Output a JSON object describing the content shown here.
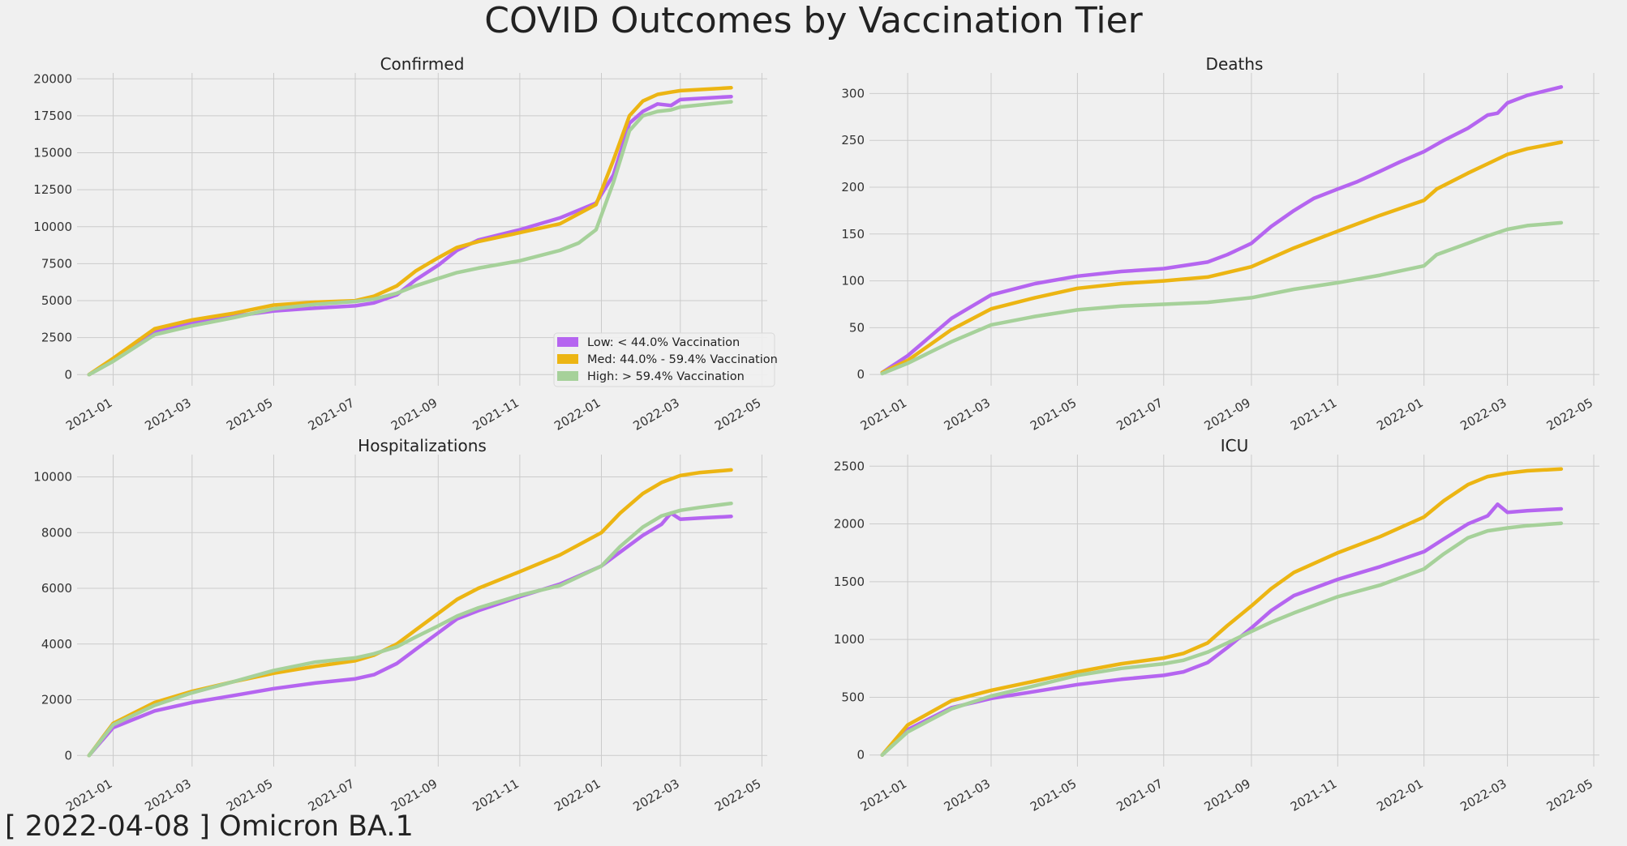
{
  "title": "COVID Outcomes by Vaccination Tier",
  "footer": "[ 2022-04-08 ] Omicron BA.1",
  "colors": {
    "low": "#b565f0",
    "med": "#ecb513",
    "high": "#a6d19a",
    "grid": "#cbcbcb",
    "background": "#f0f0f0"
  },
  "legend": {
    "placement": "lower-right of Confirmed panel",
    "entries": [
      {
        "key": "low",
        "label": "Low: < 44.0% Vaccination"
      },
      {
        "key": "med",
        "label": "Med: 44.0% - 59.4% Vaccination"
      },
      {
        "key": "high",
        "label": "High: > 59.4%  Vaccination"
      }
    ]
  },
  "chart_data": [
    {
      "type": "line",
      "title": "Confirmed",
      "x_ticks": [
        "2021-01",
        "2021-03",
        "2021-05",
        "2021-07",
        "2021-09",
        "2021-11",
        "2022-01",
        "2022-03",
        "2022-05"
      ],
      "xlim": [
        "2020-12-05",
        "2022-05-05"
      ],
      "ylim": [
        -750,
        20400
      ],
      "y_ticks": [
        0,
        2500,
        5000,
        7500,
        10000,
        12500,
        15000,
        17500,
        20000
      ],
      "grid": true,
      "series": [
        {
          "key": "low",
          "name": "Low: < 44.0% Vaccination",
          "x": [
            "2020-12-14",
            "2021-01-01",
            "2021-02-01",
            "2021-03-01",
            "2021-04-01",
            "2021-05-01",
            "2021-06-01",
            "2021-07-01",
            "2021-07-15",
            "2021-08-01",
            "2021-08-15",
            "2021-09-01",
            "2021-09-15",
            "2021-10-01",
            "2021-11-01",
            "2021-12-01",
            "2021-12-28",
            "2022-01-10",
            "2022-01-22",
            "2022-02-01",
            "2022-02-12",
            "2022-02-22",
            "2022-03-01",
            "2022-04-08"
          ],
          "y": [
            0,
            1000,
            2900,
            3500,
            3950,
            4300,
            4500,
            4650,
            4850,
            5400,
            6400,
            7400,
            8400,
            9100,
            9800,
            10600,
            11600,
            13500,
            17000,
            17800,
            18300,
            18200,
            18600,
            18800
          ]
        },
        {
          "key": "med",
          "name": "Med: 44.0% - 59.4% Vaccination",
          "x": [
            "2020-12-14",
            "2021-01-01",
            "2021-02-01",
            "2021-03-01",
            "2021-04-01",
            "2021-05-01",
            "2021-06-01",
            "2021-07-01",
            "2021-07-15",
            "2021-08-01",
            "2021-08-15",
            "2021-09-01",
            "2021-09-15",
            "2021-10-01",
            "2021-11-01",
            "2021-12-01",
            "2021-12-28",
            "2022-01-10",
            "2022-01-22",
            "2022-02-01",
            "2022-02-12",
            "2022-02-22",
            "2022-03-01",
            "2022-04-08"
          ],
          "y": [
            0,
            1100,
            3100,
            3700,
            4150,
            4700,
            4900,
            5000,
            5300,
            6000,
            7000,
            7900,
            8600,
            9000,
            9600,
            10200,
            11500,
            14500,
            17500,
            18500,
            18950,
            19100,
            19200,
            19400
          ]
        },
        {
          "key": "high",
          "name": "High: > 59.4%  Vaccination",
          "x": [
            "2020-12-14",
            "2021-01-01",
            "2021-02-01",
            "2021-03-01",
            "2021-04-01",
            "2021-05-01",
            "2021-06-01",
            "2021-07-01",
            "2021-07-15",
            "2021-08-01",
            "2021-08-15",
            "2021-09-01",
            "2021-09-15",
            "2021-10-01",
            "2021-11-01",
            "2021-12-01",
            "2021-12-15",
            "2021-12-28",
            "2022-01-10",
            "2022-01-22",
            "2022-02-01",
            "2022-02-12",
            "2022-02-22",
            "2022-03-01",
            "2022-04-08"
          ],
          "y": [
            0,
            900,
            2700,
            3300,
            3850,
            4450,
            4750,
            4950,
            5100,
            5500,
            6000,
            6500,
            6900,
            7200,
            7700,
            8400,
            8900,
            9800,
            13000,
            16500,
            17500,
            17800,
            17900,
            18100,
            18450
          ]
        }
      ]
    },
    {
      "type": "line",
      "title": "Deaths",
      "x_ticks": [
        "2021-01",
        "2021-03",
        "2021-05",
        "2021-07",
        "2021-09",
        "2021-11",
        "2022-01",
        "2022-03",
        "2022-05"
      ],
      "xlim": [
        "2020-12-05",
        "2022-05-05"
      ],
      "ylim": [
        -12,
        322
      ],
      "y_ticks": [
        0,
        50,
        100,
        150,
        200,
        250,
        300
      ],
      "grid": true,
      "series": [
        {
          "key": "low",
          "name": "Low: < 44.0% Vaccination",
          "x": [
            "2020-12-14",
            "2021-01-01",
            "2021-02-01",
            "2021-03-01",
            "2021-04-01",
            "2021-05-01",
            "2021-06-01",
            "2021-07-01",
            "2021-08-01",
            "2021-08-15",
            "2021-09-01",
            "2021-09-15",
            "2021-10-01",
            "2021-10-15",
            "2021-11-01",
            "2021-11-15",
            "2021-12-01",
            "2021-12-15",
            "2022-01-01",
            "2022-01-15",
            "2022-02-01",
            "2022-02-15",
            "2022-02-22",
            "2022-03-01",
            "2022-03-15",
            "2022-04-08"
          ],
          "y": [
            2,
            20,
            60,
            85,
            97,
            105,
            110,
            113,
            120,
            128,
            140,
            158,
            175,
            188,
            198,
            206,
            217,
            227,
            238,
            250,
            263,
            277,
            279,
            290,
            298,
            307
          ]
        },
        {
          "key": "med",
          "name": "Med: 44.0% - 59.4% Vaccination",
          "x": [
            "2020-12-14",
            "2021-01-01",
            "2021-02-01",
            "2021-03-01",
            "2021-04-01",
            "2021-05-01",
            "2021-06-01",
            "2021-07-01",
            "2021-08-01",
            "2021-09-01",
            "2021-10-01",
            "2021-11-01",
            "2021-12-01",
            "2022-01-01",
            "2022-01-10",
            "2022-02-01",
            "2022-02-15",
            "2022-03-01",
            "2022-03-15",
            "2022-04-08"
          ],
          "y": [
            2,
            15,
            48,
            70,
            82,
            92,
            97,
            100,
            104,
            115,
            135,
            153,
            170,
            186,
            198,
            215,
            225,
            235,
            241,
            248
          ]
        },
        {
          "key": "high",
          "name": "High: > 59.4%  Vaccination",
          "x": [
            "2020-12-14",
            "2021-01-01",
            "2021-02-01",
            "2021-03-01",
            "2021-04-01",
            "2021-05-01",
            "2021-06-01",
            "2021-07-01",
            "2021-08-01",
            "2021-09-01",
            "2021-10-01",
            "2021-11-01",
            "2021-12-01",
            "2022-01-01",
            "2022-01-10",
            "2022-02-01",
            "2022-02-15",
            "2022-03-01",
            "2022-03-15",
            "2022-04-08"
          ],
          "y": [
            1,
            12,
            35,
            53,
            62,
            69,
            73,
            75,
            77,
            82,
            91,
            98,
            106,
            116,
            128,
            140,
            148,
            155,
            159,
            162
          ]
        }
      ]
    },
    {
      "type": "line",
      "title": "Hospitalizations",
      "x_ticks": [
        "2021-01",
        "2021-03",
        "2021-05",
        "2021-07",
        "2021-09",
        "2021-11",
        "2022-01",
        "2022-03",
        "2022-05"
      ],
      "xlim": [
        "2020-12-05",
        "2022-05-05"
      ],
      "ylim": [
        -400,
        10800
      ],
      "y_ticks": [
        0,
        2000,
        4000,
        6000,
        8000,
        10000
      ],
      "grid": true,
      "series": [
        {
          "key": "low",
          "name": "Low: < 44.0% Vaccination",
          "x": [
            "2020-12-14",
            "2021-01-01",
            "2021-02-01",
            "2021-03-01",
            "2021-04-01",
            "2021-05-01",
            "2021-06-01",
            "2021-07-01",
            "2021-07-15",
            "2021-08-01",
            "2021-08-15",
            "2021-09-01",
            "2021-09-15",
            "2021-10-01",
            "2021-11-01",
            "2021-12-01",
            "2022-01-01",
            "2022-01-15",
            "2022-02-01",
            "2022-02-15",
            "2022-02-22",
            "2022-03-01",
            "2022-03-15",
            "2022-04-08"
          ],
          "y": [
            0,
            1000,
            1600,
            1900,
            2150,
            2400,
            2600,
            2750,
            2900,
            3300,
            3800,
            4400,
            4900,
            5200,
            5700,
            6150,
            6800,
            7300,
            7900,
            8300,
            8700,
            8480,
            8520,
            8580
          ]
        },
        {
          "key": "med",
          "name": "Med: 44.0% - 59.4% Vaccination",
          "x": [
            "2020-12-14",
            "2021-01-01",
            "2021-02-01",
            "2021-03-01",
            "2021-04-01",
            "2021-05-01",
            "2021-06-01",
            "2021-07-01",
            "2021-07-15",
            "2021-08-01",
            "2021-08-15",
            "2021-09-01",
            "2021-09-15",
            "2021-10-01",
            "2021-11-01",
            "2021-12-01",
            "2022-01-01",
            "2022-01-15",
            "2022-02-01",
            "2022-02-15",
            "2022-03-01",
            "2022-03-15",
            "2022-04-08"
          ],
          "y": [
            0,
            1150,
            1900,
            2300,
            2650,
            2950,
            3200,
            3400,
            3600,
            4000,
            4500,
            5100,
            5600,
            6000,
            6600,
            7200,
            8000,
            8700,
            9400,
            9800,
            10050,
            10150,
            10250
          ]
        },
        {
          "key": "high",
          "name": "High: > 59.4%  Vaccination",
          "x": [
            "2020-12-14",
            "2021-01-01",
            "2021-02-01",
            "2021-03-01",
            "2021-04-01",
            "2021-05-01",
            "2021-06-01",
            "2021-07-01",
            "2021-07-15",
            "2021-08-01",
            "2021-08-15",
            "2021-09-01",
            "2021-09-15",
            "2021-10-01",
            "2021-11-01",
            "2021-12-01",
            "2022-01-01",
            "2022-01-15",
            "2022-02-01",
            "2022-02-15",
            "2022-03-01",
            "2022-03-15",
            "2022-04-08"
          ],
          "y": [
            0,
            1100,
            1800,
            2250,
            2650,
            3050,
            3350,
            3500,
            3650,
            3900,
            4250,
            4650,
            5000,
            5300,
            5750,
            6100,
            6800,
            7500,
            8200,
            8600,
            8800,
            8900,
            9050
          ]
        }
      ]
    },
    {
      "type": "line",
      "title": "ICU",
      "x_ticks": [
        "2021-01",
        "2021-03",
        "2021-05",
        "2021-07",
        "2021-09",
        "2021-11",
        "2022-01",
        "2022-03",
        "2022-05"
      ],
      "xlim": [
        "2020-12-05",
        "2022-05-05"
      ],
      "ylim": [
        -100,
        2600
      ],
      "y_ticks": [
        0,
        500,
        1000,
        1500,
        2000,
        2500
      ],
      "grid": true,
      "series": [
        {
          "key": "low",
          "name": "Low: < 44.0% Vaccination",
          "x": [
            "2020-12-14",
            "2021-01-01",
            "2021-02-01",
            "2021-03-01",
            "2021-04-01",
            "2021-05-01",
            "2021-06-01",
            "2021-07-01",
            "2021-07-15",
            "2021-08-01",
            "2021-08-15",
            "2021-09-01",
            "2021-09-15",
            "2021-10-01",
            "2021-11-01",
            "2021-12-01",
            "2022-01-01",
            "2022-01-15",
            "2022-02-01",
            "2022-02-15",
            "2022-02-22",
            "2022-03-01",
            "2022-03-15",
            "2022-04-08"
          ],
          "y": [
            0,
            220,
            410,
            490,
            550,
            610,
            655,
            690,
            720,
            800,
            930,
            1100,
            1250,
            1380,
            1520,
            1630,
            1760,
            1870,
            2000,
            2070,
            2170,
            2100,
            2115,
            2130
          ]
        },
        {
          "key": "med",
          "name": "Med: 44.0% - 59.4% Vaccination",
          "x": [
            "2020-12-14",
            "2021-01-01",
            "2021-02-01",
            "2021-03-01",
            "2021-04-01",
            "2021-05-01",
            "2021-06-01",
            "2021-07-01",
            "2021-07-15",
            "2021-08-01",
            "2021-08-15",
            "2021-09-01",
            "2021-09-15",
            "2021-10-01",
            "2021-11-01",
            "2021-12-01",
            "2022-01-01",
            "2022-01-15",
            "2022-02-01",
            "2022-02-15",
            "2022-03-01",
            "2022-03-15",
            "2022-04-08"
          ],
          "y": [
            0,
            260,
            470,
            560,
            640,
            720,
            790,
            840,
            880,
            970,
            1120,
            1290,
            1440,
            1580,
            1750,
            1890,
            2060,
            2200,
            2340,
            2410,
            2440,
            2460,
            2475
          ]
        },
        {
          "key": "high",
          "name": "High: > 59.4%  Vaccination",
          "x": [
            "2020-12-14",
            "2021-01-01",
            "2021-02-01",
            "2021-03-01",
            "2021-04-01",
            "2021-05-01",
            "2021-06-01",
            "2021-07-01",
            "2021-07-15",
            "2021-08-01",
            "2021-08-15",
            "2021-09-01",
            "2021-09-15",
            "2021-10-01",
            "2021-11-01",
            "2021-12-01",
            "2022-01-01",
            "2022-01-15",
            "2022-02-01",
            "2022-02-15",
            "2022-03-01",
            "2022-03-15",
            "2022-04-08"
          ],
          "y": [
            0,
            200,
            400,
            510,
            600,
            690,
            750,
            790,
            820,
            890,
            970,
            1070,
            1150,
            1230,
            1370,
            1470,
            1610,
            1740,
            1880,
            1940,
            1965,
            1985,
            2005
          ]
        }
      ]
    }
  ]
}
